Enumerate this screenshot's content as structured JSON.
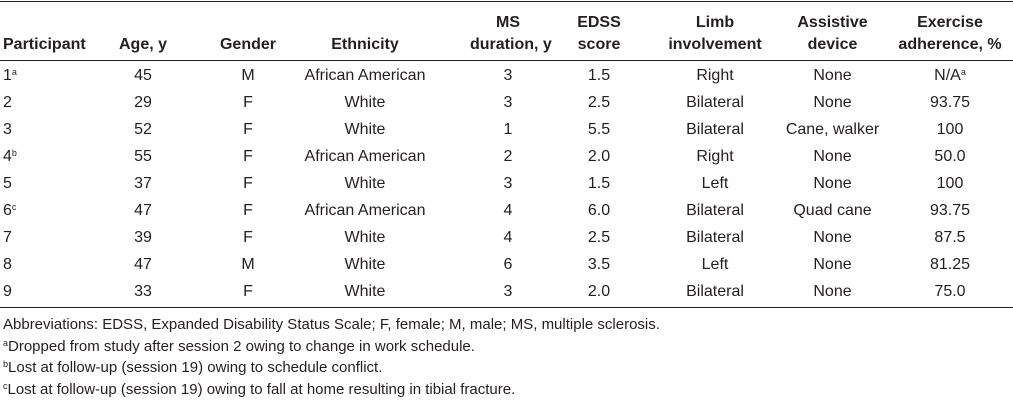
{
  "table": {
    "headers": [
      {
        "lines": [
          "Participant"
        ]
      },
      {
        "lines": [
          "Age, y"
        ]
      },
      {
        "lines": [
          "Gender"
        ]
      },
      {
        "lines": [
          "Ethnicity"
        ]
      },
      {
        "lines": [
          "MS",
          "duration, y"
        ]
      },
      {
        "lines": [
          "EDSS",
          "score"
        ]
      },
      {
        "lines": [
          "Limb",
          "involvement"
        ]
      },
      {
        "lines": [
          "Assistive",
          "device"
        ]
      },
      {
        "lines": [
          "Exercise",
          "adherence, %"
        ]
      }
    ],
    "rows": [
      {
        "participant": "1",
        "sup": "a",
        "age": "45",
        "gender": "M",
        "ethnicity": "African American",
        "ms_duration": "3",
        "edss": "1.5",
        "limb": "Right",
        "device": "None",
        "adherence": "N/A",
        "adherence_sup": "a"
      },
      {
        "participant": "2",
        "sup": "",
        "age": "29",
        "gender": "F",
        "ethnicity": "White",
        "ms_duration": "3",
        "edss": "2.5",
        "limb": "Bilateral",
        "device": "None",
        "adherence": "93.75",
        "adherence_sup": ""
      },
      {
        "participant": "3",
        "sup": "",
        "age": "52",
        "gender": "F",
        "ethnicity": "White",
        "ms_duration": "1",
        "edss": "5.5",
        "limb": "Bilateral",
        "device": "Cane, walker",
        "adherence": "100",
        "adherence_sup": ""
      },
      {
        "participant": "4",
        "sup": "b",
        "age": "55",
        "gender": "F",
        "ethnicity": "African American",
        "ms_duration": "2",
        "edss": "2.0",
        "limb": "Right",
        "device": "None",
        "adherence": "50.0",
        "adherence_sup": ""
      },
      {
        "participant": "5",
        "sup": "",
        "age": "37",
        "gender": "F",
        "ethnicity": "White",
        "ms_duration": "3",
        "edss": "1.5",
        "limb": "Left",
        "device": "None",
        "adherence": "100",
        "adherence_sup": ""
      },
      {
        "participant": "6",
        "sup": "c",
        "age": "47",
        "gender": "F",
        "ethnicity": "African American",
        "ms_duration": "4",
        "edss": "6.0",
        "limb": "Bilateral",
        "device": "Quad cane",
        "adherence": "93.75",
        "adherence_sup": ""
      },
      {
        "participant": "7",
        "sup": "",
        "age": "39",
        "gender": "F",
        "ethnicity": "White",
        "ms_duration": "4",
        "edss": "2.5",
        "limb": "Bilateral",
        "device": "None",
        "adherence": "87.5",
        "adherence_sup": ""
      },
      {
        "participant": "8",
        "sup": "",
        "age": "47",
        "gender": "M",
        "ethnicity": "White",
        "ms_duration": "6",
        "edss": "3.5",
        "limb": "Left",
        "device": "None",
        "adherence": "81.25",
        "adherence_sup": ""
      },
      {
        "participant": "9",
        "sup": "",
        "age": "33",
        "gender": "F",
        "ethnicity": "White",
        "ms_duration": "3",
        "edss": "2.0",
        "limb": "Bilateral",
        "device": "None",
        "adherence": "75.0",
        "adherence_sup": ""
      }
    ]
  },
  "footnotes": {
    "abbreviations": "Abbreviations: EDSS, Expanded Disability Status Scale; F, female; M, male; MS, multiple sclerosis.",
    "notes": [
      {
        "mark": "a",
        "text": "Dropped from study after session 2 owing to change in work schedule."
      },
      {
        "mark": "b",
        "text": "Lost at follow-up (session 19) owing to schedule conflict."
      },
      {
        "mark": "c",
        "text": "Lost at follow-up (session 19) owing to fall at home resulting in tibial fracture."
      }
    ]
  }
}
